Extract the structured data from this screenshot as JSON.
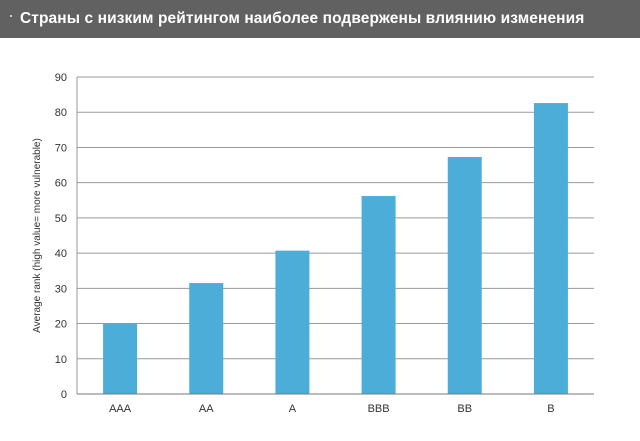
{
  "header": {
    "title": "Страны с низким рейтингом наиболее подвержены влиянию изменения"
  },
  "colors": {
    "header_bg": "#616161",
    "bar": "#4badd8",
    "grid": "#9a9a9a",
    "axis_text": "#333333"
  },
  "chart_data": {
    "type": "bar",
    "categories": [
      "AAA",
      "AA",
      "A",
      "BBB",
      "BB",
      "B"
    ],
    "values": [
      20,
      31.5,
      40.7,
      56.2,
      67.3,
      82.6
    ],
    "ylabel": "Average rank (high value= more vulnerable)",
    "ylim": [
      0,
      90
    ],
    "yticks": [
      0,
      10,
      20,
      30,
      40,
      50,
      60,
      70,
      80,
      90
    ],
    "grid": true,
    "legend": "none"
  }
}
